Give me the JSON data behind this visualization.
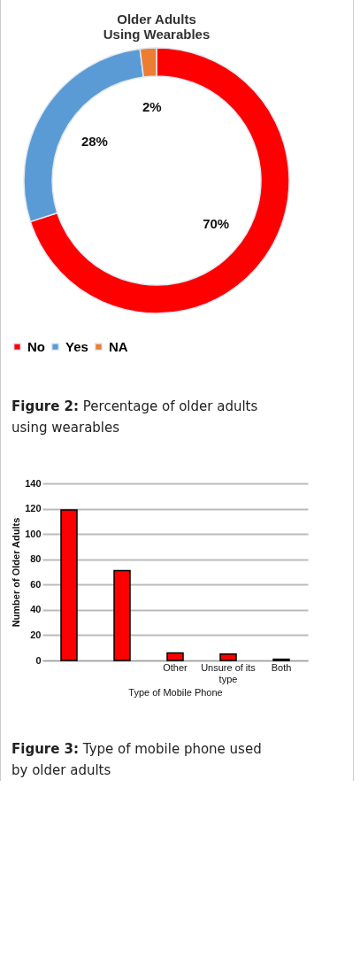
{
  "chart_data": [
    {
      "type": "donut",
      "title": "Older Adults Using Wearables",
      "categories": [
        "No",
        "Yes",
        "NA"
      ],
      "values": [
        70,
        28,
        2
      ],
      "colors": [
        "#ff0000",
        "#5b9bd5",
        "#ed7d31"
      ],
      "value_labels": [
        "70%",
        "28%",
        "2%"
      ],
      "legend": "bottom",
      "annotations": [
        "Figure 2: Percentage of older adults using wearables"
      ]
    },
    {
      "type": "bar",
      "categories": [
        null,
        null,
        "Other",
        "Unsure of its type",
        "Both"
      ],
      "values": [
        119,
        71,
        6,
        5,
        1
      ],
      "color": "#ff0000",
      "xlabel": "Type of Mobile Phone",
      "ylabel": "Number of Older Adults",
      "ylim": [
        0,
        140
      ],
      "yticks": [
        0,
        20,
        40,
        60,
        80,
        100,
        120,
        140
      ],
      "grid": "y",
      "annotations": [
        "Figure 3: Type of mobile phone used by older adults"
      ]
    }
  ]
}
